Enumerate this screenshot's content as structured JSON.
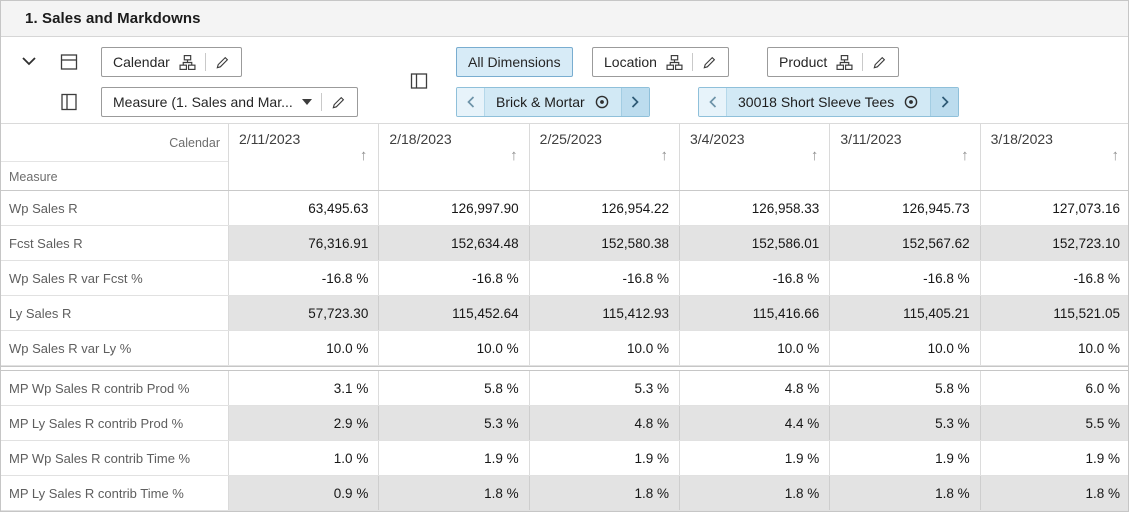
{
  "title": "1. Sales and Markdowns",
  "toolbar": {
    "calendar_label": "Calendar",
    "measure_label": "Measure (1. Sales and Mar...",
    "all_dimensions_label": "All Dimensions",
    "location_label": "Location",
    "product_label": "Product",
    "location_chip": "Brick & Mortar",
    "product_chip": "30018 Short Sleeve Tees"
  },
  "icons": {
    "sort_arrow": "↑"
  },
  "colors": {
    "selected_button_bg": "#d7ebf7",
    "chip_bg": "#d2e9f5",
    "chip_next_bg": "#bcdcee",
    "shaded_row_bg": "#e3e3e3",
    "title_bar_bg": "#f4f4f4"
  },
  "table": {
    "corner_top_label": "Calendar",
    "corner_bottom_label": "Measure",
    "columns": [
      "2/11/2023",
      "2/18/2023",
      "2/25/2023",
      "3/4/2023",
      "3/11/2023",
      "3/18/2023"
    ],
    "rows": [
      {
        "label": "Wp Sales R",
        "shaded": false,
        "group_end": false,
        "values": [
          "63,495.63",
          "126,997.90",
          "126,954.22",
          "126,958.33",
          "126,945.73",
          "127,073.16"
        ]
      },
      {
        "label": "Fcst Sales R",
        "shaded": true,
        "group_end": false,
        "values": [
          "76,316.91",
          "152,634.48",
          "152,580.38",
          "152,586.01",
          "152,567.62",
          "152,723.10"
        ]
      },
      {
        "label": "Wp Sales R var Fcst %",
        "shaded": false,
        "group_end": false,
        "values": [
          "-16.8 %",
          "-16.8 %",
          "-16.8 %",
          "-16.8 %",
          "-16.8 %",
          "-16.8 %"
        ]
      },
      {
        "label": "Ly Sales R",
        "shaded": true,
        "group_end": false,
        "values": [
          "57,723.30",
          "115,452.64",
          "115,412.93",
          "115,416.66",
          "115,405.21",
          "115,521.05"
        ]
      },
      {
        "label": "Wp Sales R var Ly %",
        "shaded": false,
        "group_end": true,
        "values": [
          "10.0 %",
          "10.0 %",
          "10.0 %",
          "10.0 %",
          "10.0 %",
          "10.0 %"
        ]
      },
      {
        "label": "MP Wp Sales R contrib Prod %",
        "shaded": false,
        "group_end": false,
        "values": [
          "3.1 %",
          "5.8 %",
          "5.3 %",
          "4.8 %",
          "5.8 %",
          "6.0 %"
        ]
      },
      {
        "label": "MP Ly Sales R contrib Prod %",
        "shaded": true,
        "group_end": false,
        "values": [
          "2.9 %",
          "5.3 %",
          "4.8 %",
          "4.4 %",
          "5.3 %",
          "5.5 %"
        ]
      },
      {
        "label": "MP Wp Sales R contrib Time %",
        "shaded": false,
        "group_end": false,
        "values": [
          "1.0 %",
          "1.9 %",
          "1.9 %",
          "1.9 %",
          "1.9 %",
          "1.9 %"
        ]
      },
      {
        "label": "MP Ly Sales R contrib Time %",
        "shaded": true,
        "group_end": false,
        "values": [
          "0.9 %",
          "1.8 %",
          "1.8 %",
          "1.8 %",
          "1.8 %",
          "1.8 %"
        ]
      }
    ]
  }
}
